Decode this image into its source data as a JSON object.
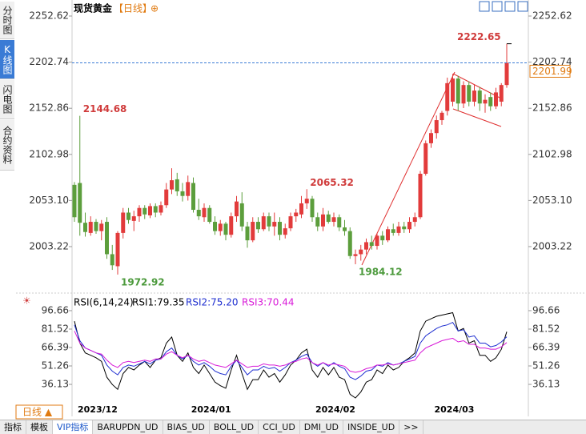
{
  "ui": {
    "side_tabs": [
      "分时图",
      "K线图",
      "闪电图",
      "合约资料"
    ],
    "toolbar_title": "现货黄金",
    "toolbar_period": "【日线】",
    "toolbar_icon": "⊕",
    "period": "日线 ▲",
    "bottom_tabs": [
      "指标",
      "模板",
      "VIP指标",
      "BARUPDN_UD",
      "BIAS_UD",
      "BOLL_UD",
      "CCI_UD",
      "DMI_UD",
      "INSIDE_UD",
      ">>"
    ]
  },
  "chart_data": [
    {
      "type": "candlestick",
      "up_color": "#e23b3b",
      "down_color": "#5c9e3c",
      "categories": [
        "2023/12",
        null,
        null,
        null,
        null,
        null,
        null,
        null,
        null,
        null,
        null,
        null,
        null,
        null,
        null,
        null,
        null,
        null,
        null,
        null,
        null,
        "2024/01",
        null,
        null,
        null,
        null,
        null,
        null,
        null,
        null,
        null,
        null,
        null,
        null,
        null,
        null,
        null,
        null,
        null,
        null,
        null,
        null,
        null,
        null,
        "2024/02",
        null,
        null,
        null,
        null,
        null,
        null,
        null,
        null,
        null,
        null,
        null,
        null,
        null,
        null,
        null,
        null,
        null,
        null,
        null,
        null,
        null,
        "2024/03",
        null,
        null,
        null,
        null,
        null,
        null,
        null,
        null,
        null,
        null,
        null,
        null,
        null,
        null
      ],
      "ohlc": [
        [
          2070,
          2073,
          2030,
          2035
        ],
        [
          2072,
          2144.68,
          2015,
          2029
        ],
        [
          2029,
          2040,
          2014,
          2019
        ],
        [
          2018,
          2036,
          2015,
          2030
        ],
        [
          2030,
          2033,
          2017,
          2020
        ],
        [
          2020,
          2032,
          2010,
          2028
        ],
        [
          2030,
          2035,
          1990,
          1995
        ],
        [
          1995,
          2005,
          1978,
          1983
        ],
        [
          1982,
          2020,
          1972.92,
          2018
        ],
        [
          2018,
          2045,
          2012,
          2040
        ],
        [
          2040,
          2045,
          2028,
          2032
        ],
        [
          2031,
          2042,
          2020,
          2036
        ],
        [
          2036,
          2048,
          2030,
          2045
        ],
        [
          2045,
          2048,
          2033,
          2038
        ],
        [
          2037,
          2050,
          2034,
          2047
        ],
        [
          2047,
          2050,
          2035,
          2040
        ],
        [
          2040,
          2052,
          2037,
          2048
        ],
        [
          2048,
          2072,
          2045,
          2065
        ],
        [
          2065,
          2088,
          2060,
          2075
        ],
        [
          2076,
          2083,
          2058,
          2063
        ],
        [
          2063,
          2072,
          2052,
          2058
        ],
        [
          2058,
          2080,
          2053,
          2073
        ],
        [
          2072,
          2078,
          2040,
          2043
        ],
        [
          2043,
          2055,
          2032,
          2036
        ],
        [
          2035,
          2050,
          2030,
          2045
        ],
        [
          2045,
          2048,
          2028,
          2030
        ],
        [
          2030,
          2036,
          2016,
          2020
        ],
        [
          2020,
          2032,
          2015,
          2028
        ],
        [
          2028,
          2030,
          2010,
          2016
        ],
        [
          2016,
          2040,
          2013,
          2036
        ],
        [
          2036,
          2058,
          2030,
          2052
        ],
        [
          2050,
          2062,
          2020,
          2025
        ],
        [
          2025,
          2030,
          2002,
          2010
        ],
        [
          2010,
          2035,
          2008,
          2030
        ],
        [
          2030,
          2035,
          2018,
          2022
        ],
        [
          2022,
          2040,
          2020,
          2036
        ],
        [
          2036,
          2040,
          2020,
          2025
        ],
        [
          2025,
          2040,
          2015,
          2030
        ],
        [
          2030,
          2035,
          2010,
          2016
        ],
        [
          2016,
          2028,
          2012,
          2023
        ],
        [
          2023,
          2040,
          2020,
          2036
        ],
        [
          2036,
          2044,
          2030,
          2040
        ],
        [
          2038,
          2058,
          2034,
          2050
        ],
        [
          2050,
          2065.32,
          2044,
          2055
        ],
        [
          2055,
          2058,
          2030,
          2035
        ],
        [
          2035,
          2040,
          2020,
          2025
        ],
        [
          2025,
          2045,
          2020,
          2038
        ],
        [
          2038,
          2042,
          2028,
          2030
        ],
        [
          2030,
          2040,
          2025,
          2035
        ],
        [
          2035,
          2038,
          2020,
          2024
        ],
        [
          2024,
          2032,
          2015,
          2020
        ],
        [
          2020,
          2024,
          1990,
          1993
        ],
        [
          1993,
          2000,
          1984.12,
          1995
        ],
        [
          1995,
          2005,
          1988,
          2000
        ],
        [
          2000,
          2012,
          1995,
          2008
        ],
        [
          2008,
          2015,
          2000,
          2004
        ],
        [
          2004,
          2018,
          2000,
          2015
        ],
        [
          2015,
          2020,
          2005,
          2010
        ],
        [
          2010,
          2025,
          2008,
          2022
        ],
        [
          2022,
          2028,
          2015,
          2018
        ],
        [
          2018,
          2030,
          2015,
          2025
        ],
        [
          2025,
          2030,
          2018,
          2022
        ],
        [
          2022,
          2035,
          2018,
          2030
        ],
        [
          2030,
          2040,
          2025,
          2035
        ],
        [
          2035,
          2085,
          2033,
          2082
        ],
        [
          2082,
          2118,
          2080,
          2115
        ],
        [
          2115,
          2130,
          2110,
          2126
        ],
        [
          2126,
          2145,
          2120,
          2140
        ],
        [
          2140,
          2150,
          2135,
          2148
        ],
        [
          2150,
          2186,
          2145,
          2180
        ],
        [
          2160,
          2190,
          2155,
          2185
        ],
        [
          2185,
          2188,
          2150,
          2158
        ],
        [
          2158,
          2182,
          2153,
          2178
        ],
        [
          2178,
          2182,
          2155,
          2160
        ],
        [
          2160,
          2178,
          2155,
          2172
        ],
        [
          2172,
          2176,
          2150,
          2158
        ],
        [
          2158,
          2168,
          2148,
          2162
        ],
        [
          2165,
          2170,
          2150,
          2155
        ],
        [
          2155,
          2175,
          2152,
          2170
        ],
        [
          2160,
          2180,
          2155,
          2178
        ],
        [
          2178,
          2222.65,
          2175,
          2201.99
        ]
      ],
      "ylim": [
        1966.8,
        2261.3
      ],
      "yticks": [
        2252.62,
        2202.74,
        2152.86,
        2102.98,
        {
          "value": 2053.1,
          "label": "2053.10"
        },
        2003.22
      ],
      "annotations": [
        {
          "value": 2144.68,
          "color": "#d03c3c"
        },
        {
          "value": 1972.92,
          "color": "#4c9a3c"
        },
        {
          "value": 2065.32,
          "color": "#d03c3c"
        },
        {
          "value": 1984.12,
          "color": "#4c9a3c"
        },
        {
          "value": 2222.65,
          "color": "#d03c3c"
        }
      ],
      "last_price": 2201.99
    },
    {
      "type": "line",
      "title": "RSI(6,14,24)",
      "series": [
        {
          "name": "RSI1:79.35",
          "color": "#000000",
          "values": [
            88,
            70,
            62,
            60,
            58,
            55,
            42,
            36,
            32,
            45,
            50,
            48,
            52,
            55,
            50,
            56,
            58,
            70,
            75,
            60,
            55,
            62,
            50,
            45,
            52,
            45,
            38,
            35,
            33,
            48,
            60,
            45,
            32,
            40,
            40,
            48,
            42,
            45,
            38,
            44,
            52,
            56,
            62,
            65,
            48,
            42,
            50,
            44,
            50,
            42,
            40,
            28,
            25,
            30,
            38,
            40,
            48,
            45,
            52,
            48,
            50,
            55,
            58,
            62,
            80,
            88,
            90,
            92,
            93,
            94,
            95,
            80,
            82,
            70,
            72,
            60,
            60,
            55,
            58,
            65,
            79.35
          ]
        },
        {
          "name": "RSI2:75.20",
          "color": "#1f2fd0",
          "values": [
            85,
            72,
            66,
            64,
            62,
            60,
            52,
            47,
            44,
            50,
            52,
            51,
            53,
            55,
            53,
            56,
            57,
            63,
            66,
            60,
            57,
            60,
            55,
            52,
            54,
            51,
            47,
            45,
            44,
            51,
            56,
            50,
            44,
            48,
            48,
            51,
            49,
            50,
            47,
            50,
            54,
            56,
            59,
            61,
            54,
            51,
            54,
            51,
            54,
            51,
            49,
            42,
            40,
            43,
            47,
            48,
            52,
            51,
            54,
            52,
            53,
            55,
            57,
            59,
            70,
            76,
            79,
            82,
            84,
            85,
            87,
            80,
            81,
            75,
            76,
            70,
            70,
            67,
            68,
            71,
            75.2
          ]
        },
        {
          "name": "RSI3:70.44",
          "color": "#d81ad8",
          "values": [
            80,
            70,
            66,
            64,
            62,
            61,
            56,
            52,
            50,
            54,
            55,
            54,
            55,
            56,
            55,
            57,
            57,
            61,
            63,
            60,
            58,
            60,
            57,
            55,
            56,
            54,
            52,
            51,
            50,
            53,
            56,
            53,
            50,
            51,
            51,
            53,
            52,
            52,
            51,
            52,
            54,
            55,
            57,
            58,
            54,
            52,
            54,
            52,
            53,
            52,
            51,
            47,
            46,
            47,
            49,
            50,
            52,
            52,
            53,
            52,
            53,
            54,
            55,
            56,
            62,
            66,
            68,
            70,
            72,
            73,
            74,
            71,
            72,
            69,
            69,
            66,
            66,
            65,
            65,
            67,
            70.44
          ]
        }
      ],
      "ylim": [
        23,
        103.2
      ],
      "yticks": [
        96.66,
        81.52,
        66.39,
        51.26,
        36.13
      ]
    }
  ]
}
